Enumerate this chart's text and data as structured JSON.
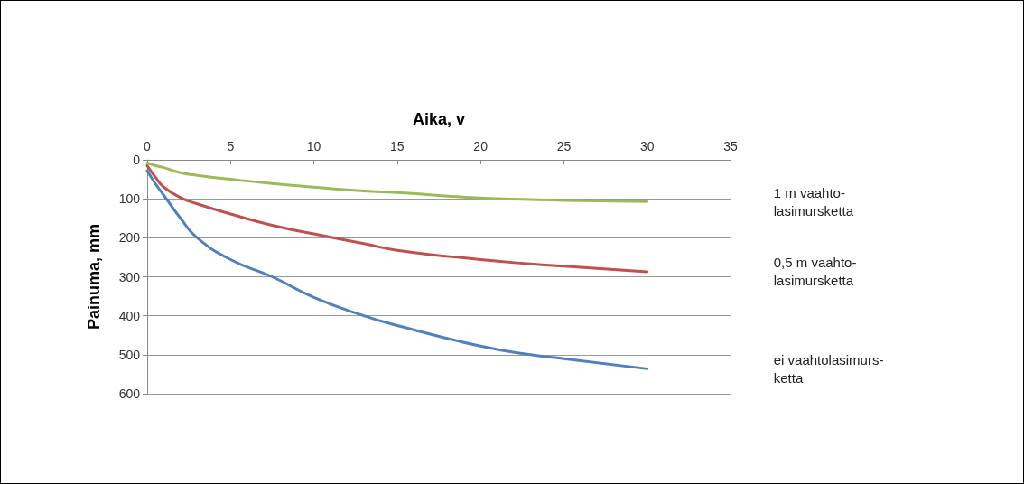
{
  "chart_data": {
    "type": "line",
    "xlabel": "Aika, v",
    "ylabel": "Painuma, mm",
    "xlim": [
      0,
      35
    ],
    "xticks": [
      0,
      5,
      10,
      15,
      20,
      25,
      30,
      35
    ],
    "ylim": [
      600,
      0
    ],
    "yticks": [
      0,
      100,
      200,
      300,
      400,
      500,
      600
    ],
    "grid": "y",
    "marker": "none",
    "line_style": "solid",
    "x": [
      0,
      0.5,
      1,
      2,
      3,
      5,
      7.5,
      10,
      13,
      15,
      20,
      23,
      25,
      30
    ],
    "series": [
      {
        "name": "1 m vaahto-\nlasimursketta",
        "color": "#9bbb59",
        "values": [
          8,
          15,
          20,
          33,
          40,
          50,
          61,
          70,
          80,
          84,
          98,
          102,
          104,
          107
        ]
      },
      {
        "name": "0,5 m vaahto-\nlasimursketta",
        "color": "#c0504d",
        "values": [
          15,
          45,
          70,
          97,
          113,
          139,
          168,
          190,
          215,
          232,
          256,
          267,
          273,
          287
        ]
      },
      {
        "name": "ei vaahtolasimurs-\nketta",
        "color": "#4f81bd",
        "values": [
          28,
          62,
          91,
          150,
          200,
          256,
          300,
          353,
          400,
          425,
          478,
          500,
          510,
          536
        ]
      }
    ]
  }
}
